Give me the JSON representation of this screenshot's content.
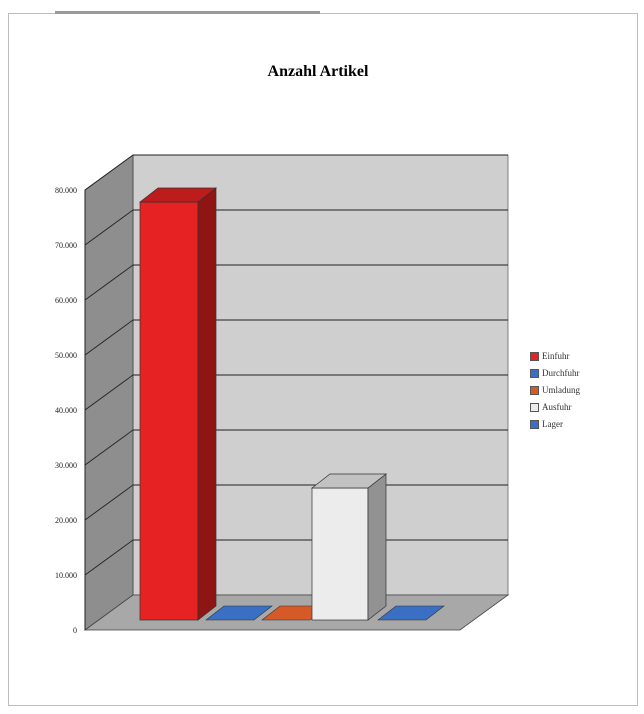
{
  "chart_data": {
    "type": "bar",
    "title": "Anzahl Artikel",
    "xlabel": "",
    "ylabel": "",
    "ylim": [
      0,
      80000
    ],
    "yticks": [
      0,
      10000,
      20000,
      30000,
      40000,
      50000,
      60000,
      70000,
      80000
    ],
    "ytick_labels": [
      "0",
      "10.000",
      "20.000",
      "30.000",
      "40.000",
      "50.000",
      "60.000",
      "70.000",
      "80.000"
    ],
    "grid": true,
    "legend_position": "right",
    "series": [
      {
        "name": "Einfuhr",
        "value": 76000,
        "color": "#e62222"
      },
      {
        "name": "Durchfuhr",
        "value": 500,
        "color": "#3a6fc4"
      },
      {
        "name": "Umladung",
        "value": 500,
        "color": "#d65a28"
      },
      {
        "name": "Ausfuhr",
        "value": 24000,
        "color": "#ececec"
      },
      {
        "name": "Lager",
        "value": 500,
        "color": "#3a6fc4"
      }
    ]
  }
}
